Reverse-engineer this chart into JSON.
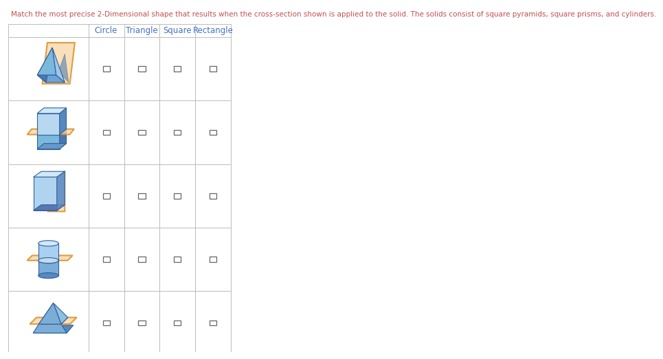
{
  "title": "Match the most precise 2-Dimensional shape that results when the cross-section shown is applied to the solid. The solids consist of square pyramids, square prisms, and cylinders.",
  "title_color": "#C0504D",
  "col_headers": [
    "Circle",
    "Triangle",
    "Square",
    "Rectangle"
  ],
  "col_header_color": "#4472C4",
  "n_rows": 5,
  "n_cols": 4,
  "bg_color": "#FFFFFF",
  "grid_color": "#BBBBBB",
  "checkbox_color": "#666666"
}
